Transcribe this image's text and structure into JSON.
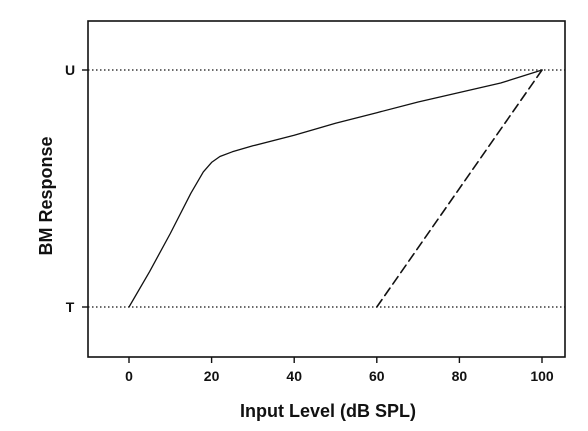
{
  "chart_data": {
    "type": "line",
    "title": "",
    "xlabel": "Input Level (dB SPL)",
    "ylabel": "BM Response",
    "xlim": [
      -10,
      105
    ],
    "x_ticks": [
      "0",
      "20",
      "40",
      "60",
      "80",
      "100"
    ],
    "y_levels": [
      {
        "label": "T",
        "value": 0,
        "style": "dotted"
      },
      {
        "label": "U",
        "value": 1,
        "style": "dotted"
      }
    ],
    "ylim": [
      -0.2,
      1.2
    ],
    "grid": false,
    "legend": "none",
    "series": [
      {
        "style": "solid",
        "color": "#111111",
        "x": [
          0,
          5,
          10,
          15,
          18,
          20,
          22,
          25,
          30,
          40,
          50,
          60,
          70,
          80,
          90,
          100
        ],
        "y": [
          0,
          0.15,
          0.31,
          0.48,
          0.57,
          0.61,
          0.635,
          0.655,
          0.68,
          0.725,
          0.775,
          0.82,
          0.865,
          0.905,
          0.945,
          1.0
        ]
      },
      {
        "style": "dashed",
        "color": "#111111",
        "x": [
          60,
          100
        ],
        "y": [
          0,
          1.0
        ]
      }
    ]
  }
}
